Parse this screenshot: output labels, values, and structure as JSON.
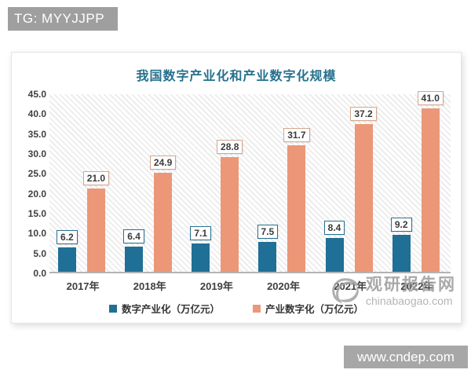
{
  "badge": {
    "text": "TG: MYYJJPP"
  },
  "watermark": {
    "site_name": "观研报告网",
    "site_url": "chinabaogao.com"
  },
  "footer_bar": {
    "url": "www.cndep.com"
  },
  "colors": {
    "series1": "#1F6F96",
    "series2": "#EB9778",
    "series1_label_border": "#26718E",
    "series2_label_border": "#D3A78D",
    "title": "#26718E",
    "axis_text": "#404040",
    "badge_bg": "#9f9f9f",
    "footer_bg": "#a7a7a7",
    "watermark_gray": "#9b9b9b"
  },
  "chart_data": {
    "type": "bar",
    "title": "我国数字产业化和产业数字化规模",
    "categories": [
      "2017年",
      "2018年",
      "2019年",
      "2020年",
      "2021年",
      "2022年"
    ],
    "series": [
      {
        "name": "数字产业化（万亿元）",
        "color": "#1F6F96",
        "label_border": "#26718E",
        "values": [
          6.2,
          6.4,
          7.1,
          7.5,
          8.4,
          9.2
        ]
      },
      {
        "name": "产业数字化（万亿元）",
        "color": "#EB9778",
        "label_border": "#D3A78D",
        "values": [
          21.0,
          24.9,
          28.8,
          31.7,
          37.2,
          41.0
        ]
      }
    ],
    "xlabel": "",
    "ylabel": "",
    "ylim": [
      0,
      45
    ],
    "ytick_step": 5,
    "yticks": [
      "45.0",
      "40.0",
      "35.0",
      "30.0",
      "25.0",
      "20.0",
      "15.0",
      "10.0",
      "5.0",
      "0.0"
    ],
    "grid": false,
    "plot_background": "diagonal-hatch",
    "legend_position": "bottom",
    "value_labels": "boxed-above-bars"
  }
}
